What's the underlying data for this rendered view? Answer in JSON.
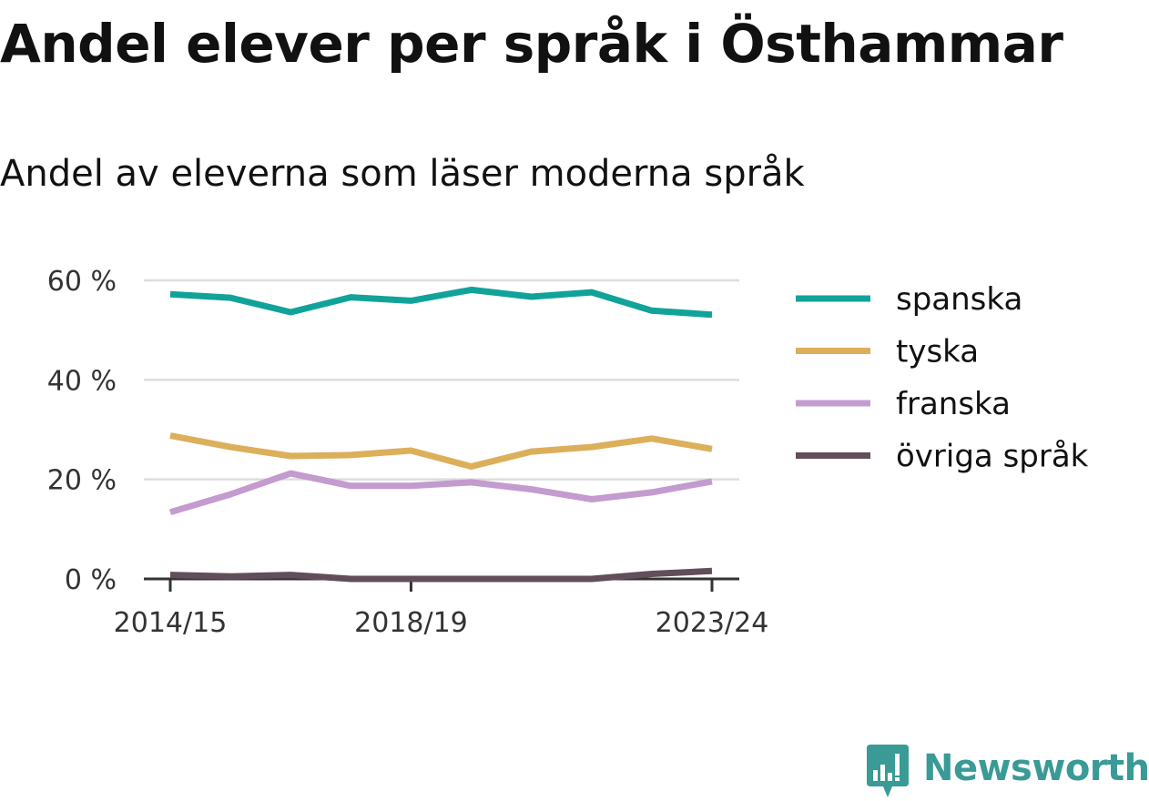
{
  "title": "Andel elever per språk i Östhammar",
  "subtitle": "Andel av eleverna som läser moderna språk",
  "brand": {
    "name": "Newsworthy",
    "logo_icon": "newsworthy-chart-bubble-icon",
    "color": "#3a9a96"
  },
  "chart_data": {
    "type": "line",
    "title": "Andel elever per språk i Östhammar",
    "subtitle": "Andel av eleverna som läser moderna språk",
    "xlabel": "",
    "ylabel": "",
    "x": [
      "2014/15",
      "2015/16",
      "2016/17",
      "2017/18",
      "2018/19",
      "2019/20",
      "2020/21",
      "2021/22",
      "2022/23",
      "2023/24"
    ],
    "x_tick_labels": [
      "2014/15",
      "2018/19",
      "2023/24"
    ],
    "y_ticks": [
      0,
      20,
      40,
      60
    ],
    "y_tick_labels": [
      "0 %",
      "20 %",
      "40 %",
      "60 %"
    ],
    "ylim": [
      0,
      60
    ],
    "grid": "horizontal",
    "legend_position": "right",
    "series": [
      {
        "name": "spanska",
        "color": "#11a39a",
        "values": [
          57.2,
          56.5,
          53.6,
          56.6,
          55.9,
          58.1,
          56.7,
          57.6,
          53.9,
          53.1
        ]
      },
      {
        "name": "tyska",
        "color": "#dcaf5b",
        "values": [
          28.8,
          26.5,
          24.7,
          24.9,
          25.8,
          22.6,
          25.6,
          26.5,
          28.2,
          26.1
        ]
      },
      {
        "name": "franska",
        "color": "#c39bcf",
        "values": [
          13.4,
          17.0,
          21.2,
          18.7,
          18.7,
          19.4,
          18.0,
          16.0,
          17.4,
          19.6
        ]
      },
      {
        "name": "övriga språk",
        "color": "#614e5a",
        "values": [
          0.8,
          0.5,
          0.8,
          0.0,
          0.0,
          0.0,
          0.0,
          0.0,
          1.0,
          1.6
        ]
      }
    ]
  }
}
